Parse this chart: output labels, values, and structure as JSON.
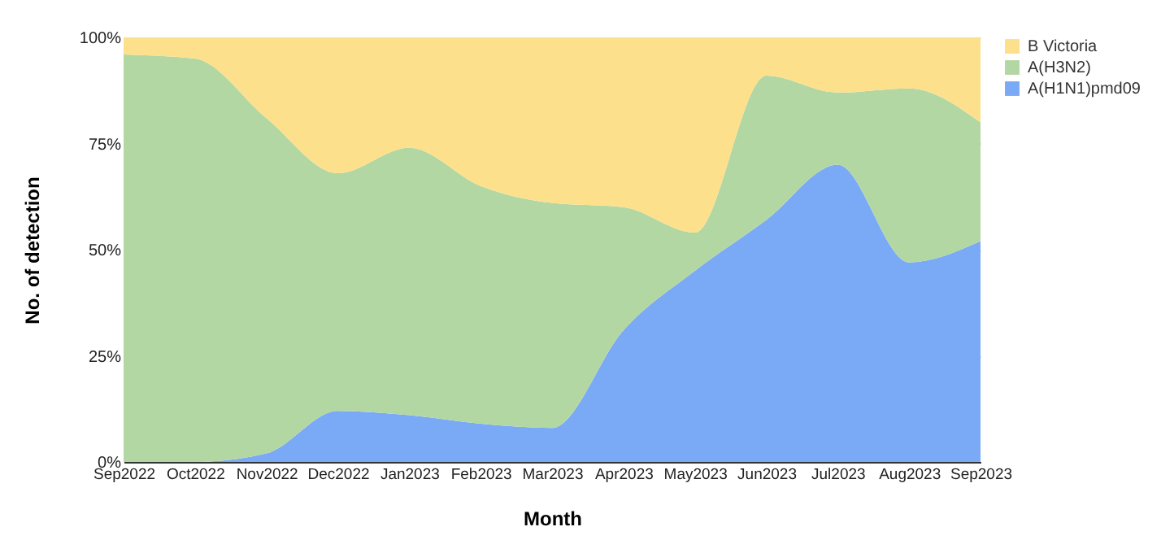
{
  "chart_data": {
    "type": "area",
    "stacked": true,
    "xlabel": "Month",
    "ylabel": "No. of detection",
    "categories": [
      "Sep2022",
      "Oct2022",
      "Nov2022",
      "Dec2022",
      "Jan2023",
      "Feb2023",
      "Mar2023",
      "Apr2023",
      "May2023",
      "Jun2023",
      "Jul2023",
      "Aug2023",
      "Sep2023"
    ],
    "series": [
      {
        "name": "A(H1N1)pmd09",
        "color": "#7aa9f5",
        "values": [
          0,
          0,
          2,
          12,
          11,
          9,
          8,
          31,
          45,
          57,
          70,
          47,
          52
        ]
      },
      {
        "name": "A(H3N2)",
        "color": "#b3d7a3",
        "values": [
          96,
          95,
          79,
          56,
          63,
          56,
          53,
          29,
          9,
          34,
          17,
          41,
          28
        ]
      },
      {
        "name": "B Victoria",
        "color": "#fce08c",
        "values": [
          4,
          5,
          19,
          32,
          26,
          35,
          39,
          40,
          46,
          9,
          13,
          12,
          20
        ]
      }
    ],
    "ylim": [
      0,
      100
    ],
    "yticks": [
      {
        "value": 0,
        "label": "0%"
      },
      {
        "value": 25,
        "label": "25%"
      },
      {
        "value": 50,
        "label": "50%"
      },
      {
        "value": 75,
        "label": "75%"
      },
      {
        "value": 100,
        "label": "100%"
      }
    ],
    "grid": "y",
    "legend": "top right"
  }
}
